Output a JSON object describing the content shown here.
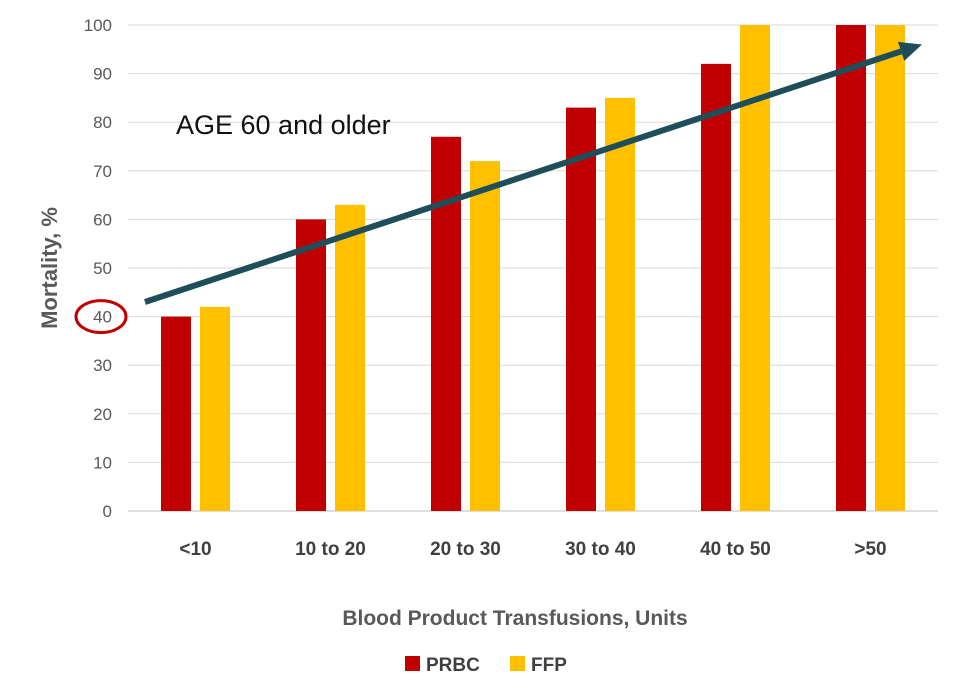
{
  "chart_data": {
    "type": "bar",
    "categories": [
      "<10",
      "10 to 20",
      "20 to 30",
      "30 to 40",
      "40 to 50",
      ">50"
    ],
    "series": [
      {
        "name": "PRBC",
        "color": "#c00000",
        "values": [
          40,
          60,
          77,
          83,
          92,
          100
        ]
      },
      {
        "name": "FFP",
        "color": "#ffc000",
        "values": [
          42,
          63,
          72,
          85,
          100,
          100
        ]
      }
    ],
    "xlabel": "Blood Product Transfusions, Units",
    "ylabel": "Mortality, %",
    "ylim": [
      0,
      100
    ],
    "yticks": [
      0,
      10,
      20,
      30,
      40,
      50,
      60,
      70,
      80,
      90,
      100
    ],
    "grid": true,
    "legend_position": "bottom",
    "annotation": "AGE 60 and older",
    "highlighted_tick": 40,
    "highlight_color": "#c00000",
    "trend_arrow": {
      "color": "#1f4e5a",
      "from": {
        "category": "<10",
        "value": 43
      },
      "to": {
        "category": ">50",
        "value": 96
      }
    }
  }
}
